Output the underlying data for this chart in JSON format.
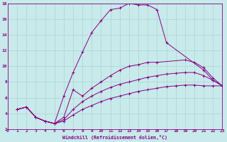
{
  "xlabel": "Windchill (Refroidissement éolien,°C)",
  "background_color": "#c8eaea",
  "grid_color": "#aad4d4",
  "line_color": "#880088",
  "xlim": [
    0,
    23
  ],
  "ylim": [
    2,
    18
  ],
  "xticks": [
    0,
    1,
    2,
    3,
    4,
    5,
    6,
    7,
    8,
    9,
    10,
    11,
    12,
    13,
    14,
    15,
    16,
    17,
    18,
    19,
    20,
    21,
    22,
    23
  ],
  "yticks": [
    2,
    4,
    6,
    8,
    10,
    12,
    14,
    16,
    18
  ],
  "curves": [
    {
      "x": [
        1,
        2,
        3,
        4,
        5,
        6,
        7,
        8,
        9,
        10,
        11,
        12,
        13,
        14,
        15,
        16,
        17,
        21,
        22,
        23
      ],
      "y": [
        4.5,
        4.8,
        3.5,
        3.0,
        2.7,
        6.2,
        9.2,
        11.8,
        14.3,
        15.8,
        17.2,
        17.4,
        18.0,
        17.8,
        17.8,
        17.2,
        13.0,
        9.5,
        8.2,
        7.5
      ]
    },
    {
      "x": [
        1,
        2,
        3,
        4,
        5,
        6,
        7,
        8,
        9,
        10,
        11,
        12,
        13,
        14,
        15,
        16,
        19,
        20,
        21,
        22,
        23
      ],
      "y": [
        4.5,
        4.8,
        3.5,
        3.0,
        2.7,
        3.5,
        7.0,
        6.2,
        7.2,
        8.0,
        8.8,
        9.5,
        10.0,
        10.2,
        10.5,
        10.5,
        10.8,
        10.5,
        9.8,
        8.5,
        7.5
      ]
    },
    {
      "x": [
        1,
        2,
        3,
        4,
        5,
        6,
        7,
        8,
        9,
        10,
        11,
        12,
        13,
        14,
        15,
        16,
        17,
        18,
        19,
        20,
        21,
        22,
        23
      ],
      "y": [
        4.5,
        4.8,
        3.5,
        3.0,
        2.7,
        3.2,
        4.5,
        5.5,
        6.2,
        6.8,
        7.3,
        7.7,
        8.0,
        8.3,
        8.6,
        8.8,
        9.0,
        9.1,
        9.2,
        9.2,
        8.8,
        8.2,
        7.5
      ]
    },
    {
      "x": [
        1,
        2,
        3,
        4,
        5,
        6,
        7,
        8,
        9,
        10,
        11,
        12,
        13,
        14,
        15,
        16,
        17,
        18,
        19,
        20,
        21,
        22,
        23
      ],
      "y": [
        4.5,
        4.8,
        3.5,
        3.0,
        2.7,
        3.0,
        3.8,
        4.5,
        5.0,
        5.5,
        5.9,
        6.2,
        6.5,
        6.8,
        7.0,
        7.2,
        7.4,
        7.5,
        7.6,
        7.6,
        7.5,
        7.5,
        7.5
      ]
    }
  ]
}
